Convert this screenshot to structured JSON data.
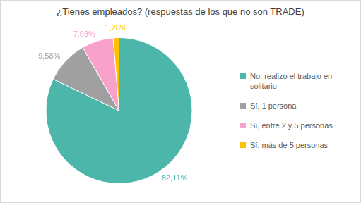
{
  "chart_data": {
    "type": "pie",
    "title": "¿Tienes empleados? (respuestas de los que no son TRADE)",
    "categories": [
      "No, realizo el trabajo en solitario",
      "Sí, 1 persona",
      "Sí, entre 2 y 5 personas",
      "Sí, más de 5 personas"
    ],
    "values": [
      82.11,
      9.58,
      7.03,
      1.28
    ],
    "value_labels": [
      "82,11%",
      "9,58%",
      "7,03%",
      "1,28%"
    ],
    "colors": [
      "#4db6aa",
      "#a0a0a0",
      "#f7a1cb",
      "#ffc000"
    ],
    "data_labels": true,
    "legend": "right"
  }
}
